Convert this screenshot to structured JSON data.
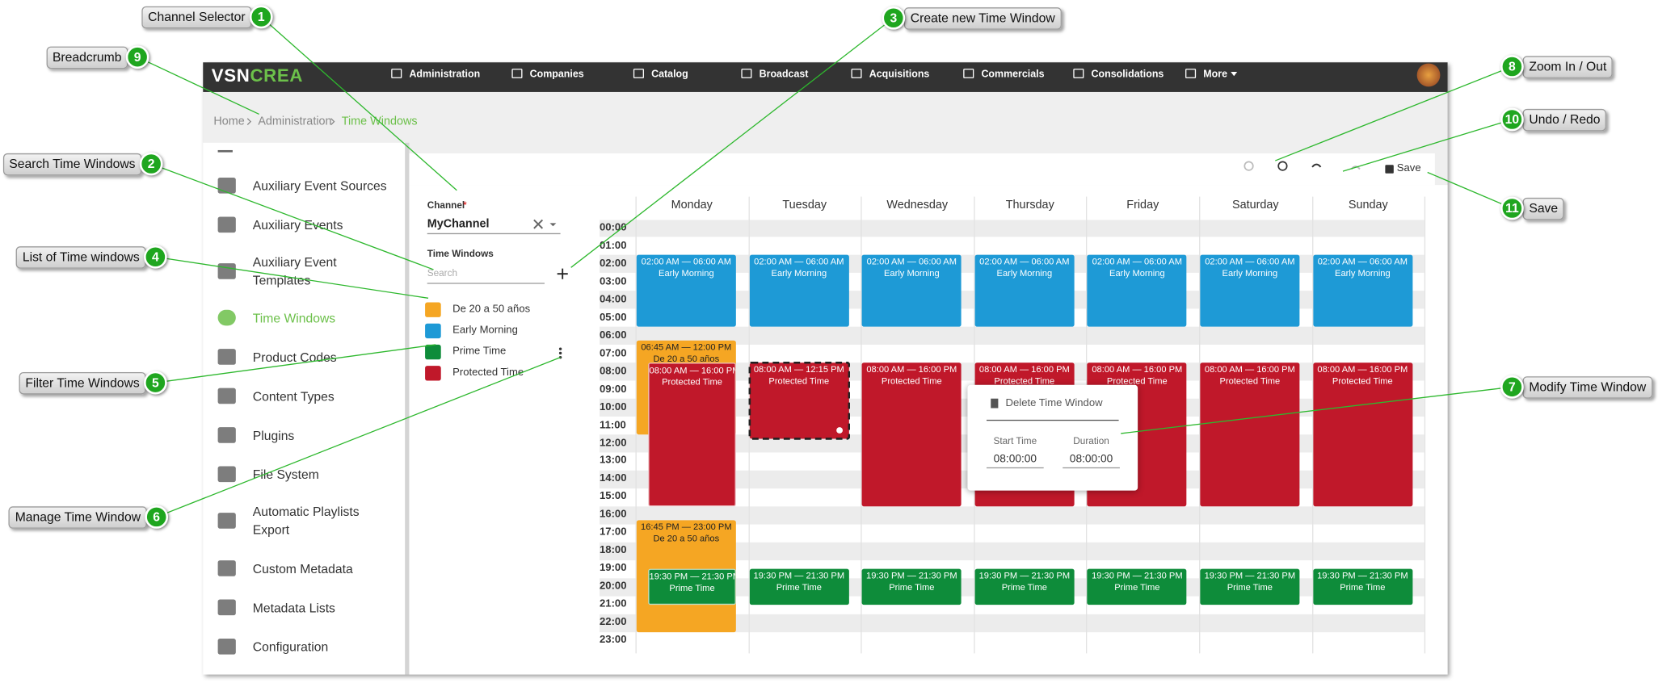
{
  "callouts": [
    {
      "number": "1",
      "label": "Channel Selector"
    },
    {
      "number": "2",
      "label": "Search Time Windows"
    },
    {
      "number": "3",
      "label": "Create new Time Window"
    },
    {
      "number": "4",
      "label": "List of Time windows"
    },
    {
      "number": "5",
      "label": "Filter Time Windows"
    },
    {
      "number": "6",
      "label": "Manage Time Window"
    },
    {
      "number": "7",
      "label": "Modify Time Window"
    },
    {
      "number": "8",
      "label": "Zoom In / Out"
    },
    {
      "number": "9",
      "label": "Breadcrumb"
    },
    {
      "number": "10",
      "label": "Undo / Redo"
    },
    {
      "number": "11",
      "label": "Save"
    }
  ],
  "navbar": {
    "brand": {
      "first": "VSN",
      "second": "CREA"
    },
    "menu": [
      "Administration",
      "Companies",
      "Catalog",
      "Broadcast",
      "Acquisitions",
      "Commercials",
      "Consolidations",
      "More"
    ]
  },
  "breadcrumb": [
    "Home",
    "Administration",
    "Time Windows"
  ],
  "sidebar": [
    "Auxiliary Event Sources",
    "Auxiliary Events",
    "Auxiliary Event Templates",
    "Time Windows",
    "Product Codes",
    "Content Types",
    "Plugins",
    "File System",
    "Automatic Playlists Export",
    "Custom Metadata",
    "Metadata Lists",
    "Configuration"
  ],
  "panel": {
    "channel_label": "Channel",
    "required": "*",
    "channel_value": "MyChannel",
    "time_windows_label": "Time Windows",
    "search_placeholder": "Search",
    "list": [
      {
        "name": "De 20 a 50 años",
        "color": "#f5a623"
      },
      {
        "name": "Early Morning",
        "color": "#1e9ad6"
      },
      {
        "name": "Prime Time",
        "color": "#0e8c3a"
      },
      {
        "name": "Protected Time",
        "color": "#c0182a"
      }
    ]
  },
  "toolbar": {
    "save": "Save"
  },
  "calendar": {
    "hours": [
      "00:00",
      "01:00",
      "02:00",
      "03:00",
      "04:00",
      "05:00",
      "06:00",
      "07:00",
      "08:00",
      "09:00",
      "10:00",
      "11:00",
      "12:00",
      "13:00",
      "14:00",
      "15:00",
      "16:00",
      "17:00",
      "18:00",
      "19:00",
      "20:00",
      "21:00",
      "22:00",
      "23:00"
    ],
    "days": [
      {
        "name": "Monday",
        "events": [
          {
            "time": "02:00 AM — 06:00 AM",
            "name": "Early Morning",
            "color": "#1e9ad6"
          },
          {
            "time": "06:45 AM — 12:00 PM",
            "name": "De 20 a 50 años",
            "color": "#f5a623"
          },
          {
            "time": "08:00 AM — 16:00 PM",
            "name": "Protected Time",
            "color": "#c0182a"
          },
          {
            "time": "16:45 PM — 23:00 PM",
            "name": "De 20 a 50 años",
            "color": "#f5a623"
          },
          {
            "time": "19:30 PM — 21:30 PM",
            "name": "Prime Time",
            "color": "#0e8c3a"
          }
        ]
      },
      {
        "name": "Tuesday",
        "events": [
          {
            "time": "02:00 AM — 06:00 AM",
            "name": "Early Morning",
            "color": "#1e9ad6"
          },
          {
            "time": "08:00 AM — 12:15 PM",
            "name": "Protected Time",
            "color": "#c0182a"
          },
          {
            "time": "19:30 PM — 21:30 PM",
            "name": "Prime Time",
            "color": "#0e8c3a"
          }
        ]
      },
      {
        "name": "Wednesday",
        "events": [
          {
            "time": "02:00 AM — 06:00 AM",
            "name": "Early Morning",
            "color": "#1e9ad6"
          },
          {
            "time": "08:00 AM — 16:00 PM",
            "name": "Protected Time",
            "color": "#c0182a"
          },
          {
            "time": "19:30 PM — 21:30 PM",
            "name": "Prime Time",
            "color": "#0e8c3a"
          }
        ]
      },
      {
        "name": "Thursday",
        "events": [
          {
            "time": "02:00 AM — 06:00 AM",
            "name": "Early Morning",
            "color": "#1e9ad6"
          },
          {
            "time": "08:00 AM — 16:00 PM",
            "name": "Protected Time",
            "color": "#c0182a"
          },
          {
            "time": "19:30 PM — 21:30 PM",
            "name": "Prime Time",
            "color": "#0e8c3a"
          }
        ]
      },
      {
        "name": "Friday",
        "events": [
          {
            "time": "02:00 AM — 06:00 AM",
            "name": "Early Morning",
            "color": "#1e9ad6"
          },
          {
            "time": "08:00 AM — 16:00 PM",
            "name": "Protected Time",
            "color": "#c0182a"
          },
          {
            "time": "19:30 PM — 21:30 PM",
            "name": "Prime Time",
            "color": "#0e8c3a"
          }
        ]
      },
      {
        "name": "Saturday",
        "events": [
          {
            "time": "02:00 AM — 06:00 AM",
            "name": "Early Morning",
            "color": "#1e9ad6"
          },
          {
            "time": "08:00 AM — 16:00 PM",
            "name": "Protected Time",
            "color": "#c0182a"
          },
          {
            "time": "19:30 PM — 21:30 PM",
            "name": "Prime Time",
            "color": "#0e8c3a"
          }
        ]
      },
      {
        "name": "Sunday",
        "events": [
          {
            "time": "02:00 AM — 06:00 AM",
            "name": "Early Morning",
            "color": "#1e9ad6"
          },
          {
            "time": "08:00 AM — 16:00 PM",
            "name": "Protected Time",
            "color": "#c0182a"
          },
          {
            "time": "19:30 PM — 21:30 PM",
            "name": "Prime Time",
            "color": "#0e8c3a"
          }
        ]
      }
    ]
  },
  "popup": {
    "delete": "Delete Time Window",
    "start_label": "Start Time",
    "start_value": "08:00:00",
    "duration_label": "Duration",
    "duration_value": "08:00:00"
  }
}
